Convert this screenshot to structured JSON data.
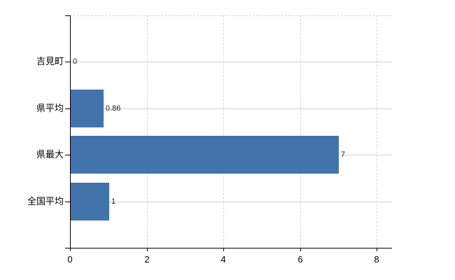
{
  "chart_data": {
    "type": "bar",
    "orientation": "horizontal",
    "title": "",
    "categories": [
      "吉見町",
      "県平均",
      "県最大",
      "全国平均"
    ],
    "values": [
      0,
      0.86,
      7,
      1
    ],
    "value_labels": [
      "0",
      "0.86",
      "7",
      "1"
    ],
    "xlabel": "",
    "ylabel": "",
    "xlim": [
      0,
      8
    ],
    "x_tick_labels": [
      "0",
      "2",
      "4",
      "6",
      "8"
    ],
    "x_tick_values": [
      0,
      2,
      4,
      6,
      8
    ],
    "grid": true,
    "legend": false,
    "colors": {
      "bar": "#4273ab",
      "grid": "#d6d6d6",
      "axis": "#000000",
      "value_label": "#1a1a1a",
      "background": "#ffffff"
    }
  }
}
